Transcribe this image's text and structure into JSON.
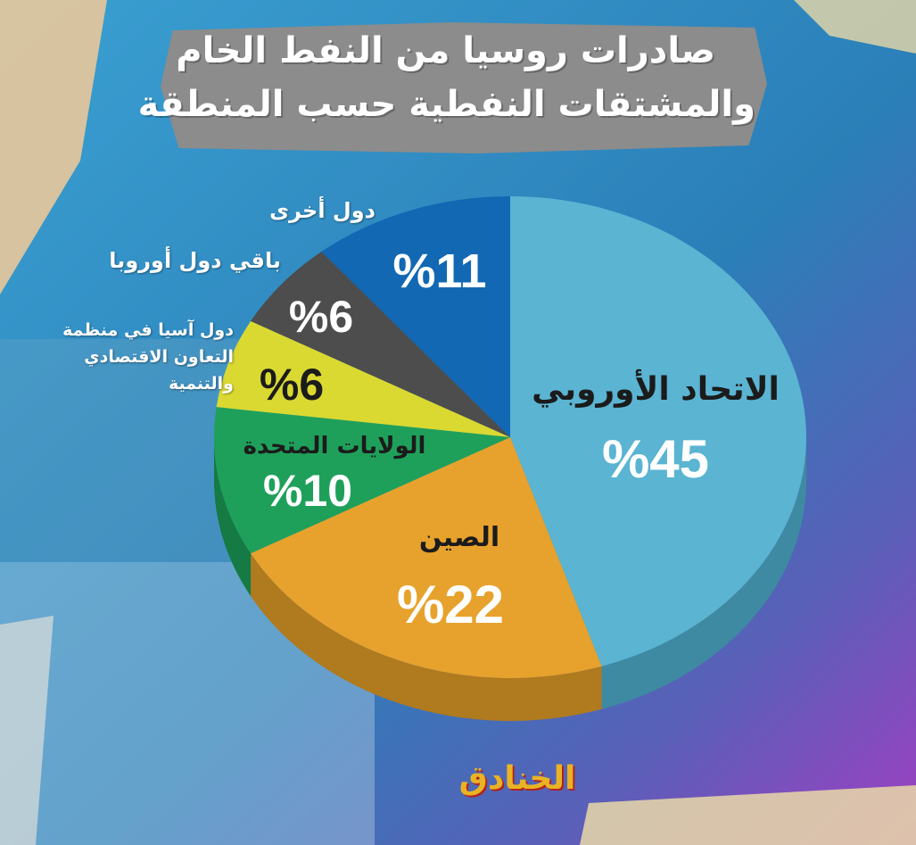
{
  "title": {
    "line1": "صادرات روسيا من النفط الخام",
    "line2": "والمشتقات النفطية حسب المنطقة"
  },
  "chart_data": {
    "type": "pie",
    "title": "صادرات روسيا من النفط الخام والمشتقات النفطية حسب المنطقة",
    "slices": [
      {
        "name": "الاتحاد الأوروبي",
        "value": 45,
        "value_label": "%45",
        "color": "#5ab4d2",
        "side_color": "#3f8aa3"
      },
      {
        "name": "الصين",
        "value": 22,
        "value_label": "%22",
        "color": "#e7a22d",
        "side_color": "#b07a1e"
      },
      {
        "name": "الولايات المتحدة",
        "value": 10,
        "value_label": "%10",
        "color": "#1fa05a",
        "side_color": "#157a43"
      },
      {
        "name": "دول آسيا في منظمة التعاون الاقتصادي والتنمية",
        "value": 6,
        "value_label": "%6",
        "color": "#d9d932",
        "side_color": "#a8a826"
      },
      {
        "name": "باقي دول أوروبا",
        "value": 6,
        "value_label": "%6",
        "color": "#4d4d4d",
        "side_color": "#333333"
      },
      {
        "name": "دول أخرى",
        "value": 11,
        "value_label": "%11",
        "color": "#1268b3",
        "side_color": "#0d4d86"
      }
    ]
  },
  "legend": {
    "other": "دول أخرى",
    "rest_europe": "باقي دول أوروبا",
    "oecd_asia_lines": [
      "دول آسيا في منظمة",
      "التعاون الاقتصادي",
      "والتنمية"
    ]
  },
  "logo": {
    "text": "الخنادق"
  },
  "colors": {
    "background": "#2f8fc3",
    "banner": "#8c8c8c",
    "accent_purple": "#9a3fc0"
  }
}
